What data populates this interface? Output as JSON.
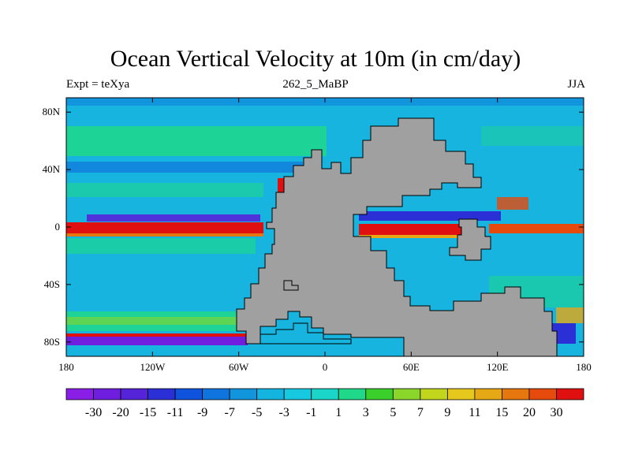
{
  "title": "Ocean Vertical Velocity at 10m (in cm/day)",
  "left_label": "Expt = teXya",
  "center_label": "262_5_MaBP",
  "right_label": "JJA",
  "map": {
    "lon_range": [
      -180,
      180
    ],
    "lat_range": [
      -90,
      90
    ],
    "lon_ticks": [
      {
        "value": -180,
        "label": "180"
      },
      {
        "value": -120,
        "label": "120W"
      },
      {
        "value": -60,
        "label": "60W"
      },
      {
        "value": 0,
        "label": "0"
      },
      {
        "value": 60,
        "label": "60E"
      },
      {
        "value": 120,
        "label": "120E"
      },
      {
        "value": 180,
        "label": "180"
      }
    ],
    "lat_ticks": [
      {
        "value": 80,
        "label": "80N"
      },
      {
        "value": 40,
        "label": "40N"
      },
      {
        "value": 0,
        "label": "0"
      },
      {
        "value": -40,
        "label": "40S"
      },
      {
        "value": -80,
        "label": "80S"
      }
    ],
    "ocean_color": "#16b4de",
    "land_color": "#a0a0a0"
  },
  "colorbar": {
    "levels": [
      "-30",
      "-20",
      "-15",
      "-11",
      "-9",
      "-7",
      "-5",
      "-3",
      "-1",
      "1",
      "3",
      "5",
      "7",
      "9",
      "11",
      "15",
      "20",
      "30"
    ],
    "colors": [
      "#8a1ee6",
      "#6f1ee0",
      "#5523d8",
      "#2b30d6",
      "#0f52de",
      "#0f74de",
      "#1196de",
      "#13b4e0",
      "#16c8e0",
      "#19d6c8",
      "#1fd88a",
      "#3acf2a",
      "#8ad62a",
      "#c2d61e",
      "#e6c81c",
      "#e6a814",
      "#e6760e",
      "#e64a0c",
      "#e01010"
    ]
  }
}
